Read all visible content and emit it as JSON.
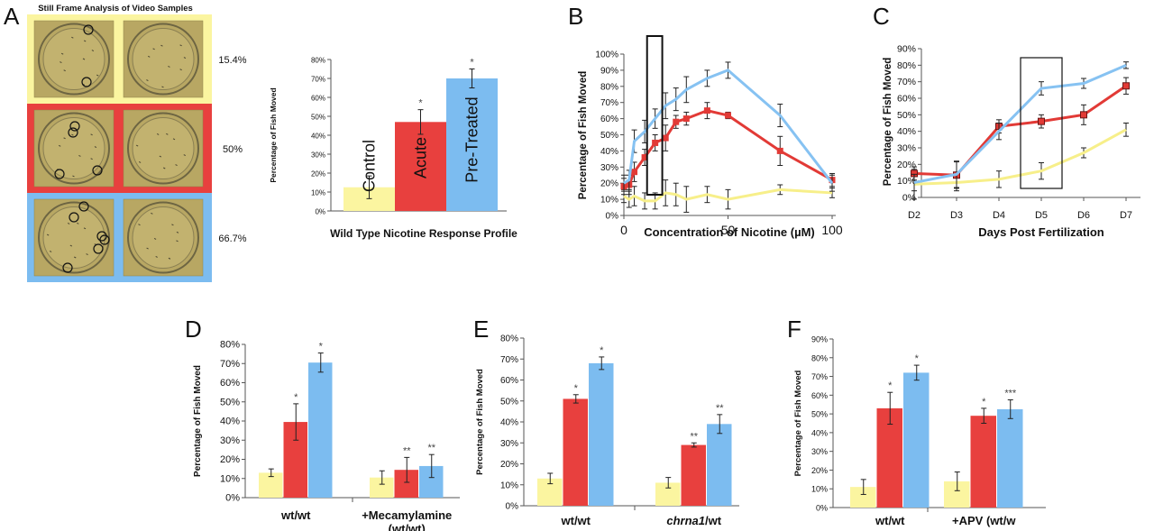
{
  "colors": {
    "yellow": "#fbf5a0",
    "red": "#e8403e",
    "blue": "#7cbcf0",
    "dish_bg": "#b8a763",
    "line_yellow": "#f7ef8a",
    "line_red": "#e23a36",
    "line_blue": "#86c2f2"
  },
  "panel_letters": {
    "A": "A",
    "B": "B",
    "C": "C",
    "D": "D",
    "E": "E",
    "F": "F"
  },
  "panelA": {
    "title": "Still Frame Analysis of Video Samples",
    "rows": [
      {
        "percent": "15.4%",
        "color": "yellow"
      },
      {
        "percent": "50%",
        "color": "red"
      },
      {
        "percent": "66.7%",
        "color": "blue"
      }
    ]
  },
  "chart_data": [
    {
      "id": "A-bar",
      "type": "bar",
      "title": "Wild Type Nicotine Response Profile",
      "ylabel": "Percentage of Fish Moved",
      "ylim": [
        0,
        80
      ],
      "yticks": [
        "0%",
        "10%",
        "20%",
        "30%",
        "40%",
        "50%",
        "60%",
        "70%",
        "80%"
      ],
      "categories": [
        "Control",
        "Acute",
        "Pre-Treated"
      ],
      "values": [
        12.5,
        47,
        70
      ],
      "errors": [
        6,
        6.5,
        5
      ],
      "significance": [
        "",
        "*",
        "*"
      ],
      "bar_colors": [
        "yellow",
        "red",
        "blue"
      ]
    },
    {
      "id": "B",
      "type": "line",
      "xlabel": "Concentration of Nicotine (µM)",
      "ylabel": "Percentage of Fish Moved",
      "xlim": [
        0,
        100
      ],
      "ylim": [
        0,
        100
      ],
      "xticks": [
        "0",
        "50",
        "100"
      ],
      "yticks": [
        "0%",
        "10%",
        "20%",
        "30%",
        "40%",
        "50%",
        "60%",
        "70%",
        "80%",
        "90%",
        "100%"
      ],
      "series": [
        {
          "color": "blue",
          "x": [
            0,
            2.5,
            5,
            10,
            15,
            20,
            25,
            30,
            40,
            50,
            75,
            100
          ],
          "y": [
            20,
            22,
            46,
            52,
            60,
            68,
            72,
            78,
            85,
            90,
            62,
            20
          ],
          "err": [
            5,
            6,
            7,
            7,
            6,
            8,
            7,
            8,
            5,
            5,
            7,
            5
          ]
        },
        {
          "color": "red",
          "x": [
            0,
            2.5,
            5,
            10,
            15,
            20,
            25,
            30,
            40,
            50,
            75,
            100
          ],
          "y": [
            18,
            19,
            27,
            36,
            45,
            48,
            58,
            60,
            65,
            62,
            40,
            22
          ],
          "err": [
            5,
            6,
            6,
            5,
            5,
            8,
            4,
            4,
            5,
            2,
            9,
            4
          ]
        },
        {
          "color": "yellow",
          "x": [
            0,
            2.5,
            5,
            10,
            15,
            20,
            25,
            30,
            40,
            50,
            75,
            100
          ],
          "y": [
            12,
            10,
            12,
            9,
            9,
            14,
            13,
            10,
            13,
            10,
            16,
            14
          ],
          "err": [
            4,
            5,
            6,
            5,
            5,
            8,
            7,
            8,
            5,
            6,
            3,
            3
          ]
        }
      ],
      "highlight_box_x": [
        12,
        18
      ]
    },
    {
      "id": "C",
      "type": "line",
      "xlabel": "Days Post Fertilization",
      "ylabel": "Percentage of Fish Moved",
      "ylim": [
        0,
        90
      ],
      "categories": [
        "D2",
        "D3",
        "D4",
        "D5",
        "D6",
        "D7"
      ],
      "yticks": [
        "0%",
        "10%",
        "20%",
        "30%",
        "40%",
        "50%",
        "60%",
        "70%",
        "80%",
        "90%"
      ],
      "series": [
        {
          "color": "blue",
          "values": [
            9,
            14,
            40,
            66,
            69,
            80
          ],
          "err": [
            5,
            8,
            5,
            4,
            3,
            2
          ]
        },
        {
          "color": "red",
          "values": [
            14.5,
            13.5,
            43,
            46,
            50,
            67.5
          ],
          "err": [
            4,
            8,
            4,
            4,
            6,
            5
          ]
        },
        {
          "color": "yellow",
          "values": [
            8,
            9,
            11,
            16,
            27,
            41
          ],
          "err": [
            9,
            5,
            5,
            5,
            3,
            4
          ]
        }
      ],
      "highlight_box": "D5"
    },
    {
      "id": "D",
      "type": "bar",
      "ylabel": "Percentage of Fish Moved",
      "ylim": [
        0,
        80
      ],
      "yticks": [
        "0%",
        "10%",
        "20%",
        "30%",
        "40%",
        "50%",
        "60%",
        "70%",
        "80%"
      ],
      "groups": [
        "wt/wt",
        "+Mecamylamine\n(wt/wt)"
      ],
      "series": [
        {
          "color": "yellow",
          "values": [
            13,
            10.5
          ],
          "err": [
            2,
            3.5
          ],
          "sig": [
            "",
            ""
          ]
        },
        {
          "color": "red",
          "values": [
            39.5,
            14.5
          ],
          "err": [
            9.5,
            6.5
          ],
          "sig": [
            "*",
            "**"
          ]
        },
        {
          "color": "blue",
          "values": [
            70.5,
            16.5
          ],
          "err": [
            5,
            6
          ],
          "sig": [
            "*",
            "**"
          ]
        }
      ]
    },
    {
      "id": "E",
      "type": "bar",
      "ylabel": "Percentage of Fish Moved",
      "ylim": [
        0,
        80
      ],
      "yticks": [
        "0%",
        "10%",
        "20%",
        "30%",
        "40%",
        "50%",
        "60%",
        "70%",
        "80%"
      ],
      "groups": [
        "wt/wt",
        "chrna1/wt"
      ],
      "group_italic_part": [
        "",
        "chrna1"
      ],
      "series": [
        {
          "color": "yellow",
          "values": [
            13,
            11
          ],
          "err": [
            2.5,
            2.5
          ],
          "sig": [
            "",
            ""
          ]
        },
        {
          "color": "red",
          "values": [
            51,
            29
          ],
          "err": [
            2,
            1
          ],
          "sig": [
            "*",
            "**"
          ]
        },
        {
          "color": "blue",
          "values": [
            68,
            39
          ],
          "err": [
            3,
            4.5
          ],
          "sig": [
            "*",
            "**"
          ]
        }
      ]
    },
    {
      "id": "F",
      "type": "bar",
      "ylabel": "Percentage of Fish Moved",
      "ylim": [
        0,
        90
      ],
      "yticks": [
        "0%",
        "10%",
        "20%",
        "30%",
        "40%",
        "50%",
        "60%",
        "70%",
        "80%",
        "90%"
      ],
      "groups": [
        "wt/wt",
        "+APV (wt/w"
      ],
      "series": [
        {
          "color": "yellow",
          "values": [
            11,
            14
          ],
          "err": [
            4,
            5
          ],
          "sig": [
            "",
            ""
          ]
        },
        {
          "color": "red",
          "values": [
            53,
            49
          ],
          "err": [
            8.5,
            4
          ],
          "sig": [
            "*",
            "*"
          ]
        },
        {
          "color": "blue",
          "values": [
            72,
            52.5
          ],
          "err": [
            4,
            5
          ],
          "sig": [
            "*",
            "***"
          ]
        }
      ]
    }
  ]
}
